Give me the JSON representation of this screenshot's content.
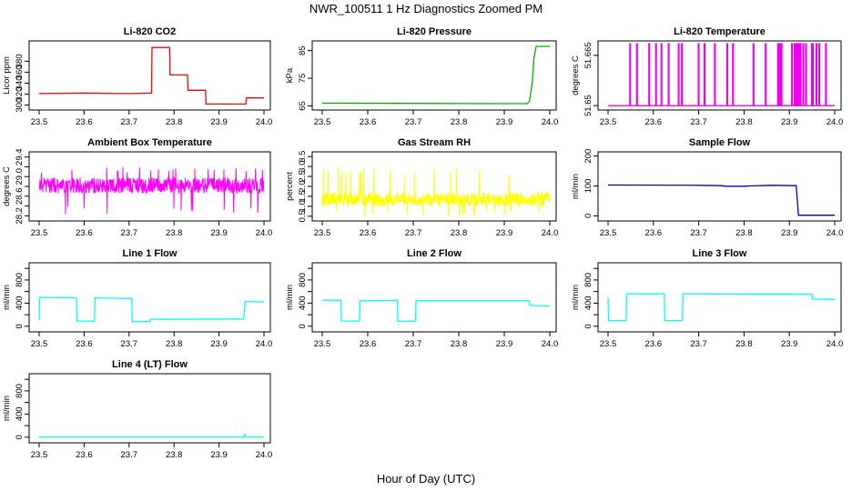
{
  "figure": {
    "title": "NWR_100511  1 Hz Diagnostics Zoomed PM",
    "xlabel": "Hour of Day (UTC)"
  },
  "chart_data": [
    {
      "type": "line",
      "title": "Li-820 CO2",
      "ylabel": "Licor ppm",
      "color": "#ff0000",
      "xlim": [
        23.5,
        24.0
      ],
      "ylim": [
        296,
        412
      ],
      "x_ticks": [
        23.5,
        23.6,
        23.7,
        23.8,
        23.9,
        24.0
      ],
      "y_ticks": [
        300,
        320,
        340,
        360,
        380
      ],
      "series": [
        {
          "x": [
            23.5,
            23.6,
            23.7,
            23.75,
            23.751,
            23.79,
            23.791,
            23.83,
            23.831,
            23.87,
            23.871,
            23.96,
            23.961,
            24.0
          ],
          "y": [
            321,
            322,
            321,
            322,
            405,
            405,
            355,
            355,
            327,
            327,
            302,
            302,
            313,
            313
          ]
        }
      ]
    },
    {
      "type": "line",
      "title": "Li-820 Pressure",
      "ylabel": "kPa",
      "color": "#00b000",
      "xlim": [
        23.5,
        24.0
      ],
      "ylim": [
        64.5,
        87.5
      ],
      "x_ticks": [
        23.5,
        23.6,
        23.7,
        23.8,
        23.9,
        24.0
      ],
      "y_ticks": [
        65,
        75,
        85
      ],
      "series": [
        {
          "x": [
            23.5,
            23.7,
            23.9,
            23.95,
            23.955,
            23.962,
            23.965,
            23.97,
            24.0
          ],
          "y": [
            66.0,
            65.9,
            65.8,
            65.8,
            66.5,
            74,
            82,
            86.5,
            86.5
          ]
        }
      ]
    },
    {
      "type": "line",
      "title": "Li-820 Temperature",
      "ylabel": "degrees C",
      "color": "#ee00ee",
      "xlim": [
        23.5,
        24.0
      ],
      "ylim": [
        51.6495,
        51.6685
      ],
      "x_ticks": [
        23.5,
        23.6,
        23.7,
        23.8,
        23.9,
        24.0
      ],
      "y_ticks": [
        51.65,
        51.665
      ],
      "series": [
        {
          "baseline": 51.65,
          "spike_top": 51.6685,
          "spike_x": [
            23.548,
            23.563,
            23.59,
            23.605,
            23.617,
            23.633,
            23.655,
            23.662,
            23.699,
            23.712,
            23.735,
            23.762,
            23.775,
            23.82,
            23.847,
            23.874,
            23.876,
            23.879,
            23.882,
            23.905,
            23.911,
            23.914,
            23.917,
            23.92,
            23.924,
            23.93,
            23.936,
            23.949,
            23.951,
            23.959,
            23.965,
            23.98
          ]
        }
      ]
    },
    {
      "type": "line",
      "title": "Ambient Box Temperature",
      "ylabel": "degrees C",
      "color": "#ff00ff",
      "xlim": [
        23.5,
        24.0
      ],
      "ylim": [
        28.15,
        29.45
      ],
      "x_ticks": [
        23.5,
        23.6,
        23.7,
        23.8,
        23.9,
        24.0
      ],
      "y_ticks": [
        28.2,
        28.4,
        28.6,
        28.8,
        29.0,
        29.2,
        29.4
      ],
      "y_tick_labels": [
        "28.2",
        "",
        "28.6",
        "",
        "29.0",
        "",
        "29.4"
      ],
      "series": [
        {
          "center": 28.82,
          "spread": 0.16,
          "outlier_low": 28.2,
          "outlier_high": 29.2
        }
      ]
    },
    {
      "type": "line",
      "title": "Gas Stream RH",
      "ylabel": "percent",
      "color": "#ffff00",
      "xlim": [
        23.5,
        24.0
      ],
      "ylim": [
        0.4,
        3.6
      ],
      "x_ticks": [
        23.5,
        23.6,
        23.7,
        23.8,
        23.9,
        24.0
      ],
      "y_ticks": [
        0.5,
        1.0,
        1.5,
        2.0,
        2.5,
        3.0,
        3.5
      ],
      "y_tick_labels": [
        "0.5",
        "1.0",
        "1.5",
        "2.0",
        "2.5",
        "3.0",
        "3.5"
      ],
      "series": [
        {
          "center": 1.35,
          "spread": 0.35,
          "outlier_low": 0.5,
          "outlier_high": 3.0
        }
      ]
    },
    {
      "type": "line",
      "title": "Sample Flow",
      "ylabel": "ml/min",
      "color": "#0000cc",
      "xlim": [
        23.5,
        24.0
      ],
      "ylim": [
        -8,
        205
      ],
      "x_ticks": [
        23.5,
        23.6,
        23.7,
        23.8,
        23.9,
        24.0
      ],
      "y_ticks": [
        0,
        100,
        200
      ],
      "series": [
        {
          "x": [
            23.5,
            23.7,
            23.75,
            23.76,
            23.8,
            23.81,
            23.86,
            23.915,
            23.92,
            24.0
          ],
          "y": [
            103,
            102,
            101,
            99,
            99,
            100,
            102,
            101,
            2,
            2
          ]
        }
      ]
    },
    {
      "type": "line",
      "title": "Line 1 Flow",
      "ylabel": "ml/min",
      "color": "#00ffff",
      "xlim": [
        23.5,
        24.0
      ],
      "ylim": [
        -50,
        1050
      ],
      "x_ticks": [
        23.5,
        23.6,
        23.7,
        23.8,
        23.9,
        24.0
      ],
      "y_ticks": [
        0,
        200,
        400,
        600,
        800,
        1000
      ],
      "y_tick_labels": [
        "0",
        "",
        "400",
        "",
        "800",
        ""
      ],
      "series": [
        {
          "x": [
            23.5,
            23.501,
            23.583,
            23.584,
            23.623,
            23.624,
            23.706,
            23.707,
            23.747,
            23.748,
            23.955,
            23.958,
            24.0
          ],
          "y": [
            100,
            500,
            490,
            90,
            90,
            490,
            480,
            80,
            80,
            120,
            125,
            430,
            420
          ]
        }
      ]
    },
    {
      "type": "line",
      "title": "Line 2 Flow",
      "ylabel": "ml/min",
      "color": "#00ffff",
      "xlim": [
        23.5,
        24.0
      ],
      "ylim": [
        -50,
        1050
      ],
      "x_ticks": [
        23.5,
        23.6,
        23.7,
        23.8,
        23.9,
        24.0
      ],
      "y_ticks": [
        0,
        200,
        400,
        600,
        800,
        1000
      ],
      "y_tick_labels": [
        "0",
        "",
        "400",
        "",
        "800",
        ""
      ],
      "series": [
        {
          "x": [
            23.5,
            23.541,
            23.542,
            23.582,
            23.583,
            23.665,
            23.666,
            23.705,
            23.706,
            23.955,
            23.956,
            24.0
          ],
          "y": [
            450,
            450,
            90,
            90,
            440,
            450,
            85,
            85,
            440,
            440,
            360,
            350
          ]
        }
      ]
    },
    {
      "type": "line",
      "title": "Line 3 Flow",
      "ylabel": "ml/min",
      "color": "#00ffff",
      "xlim": [
        23.5,
        24.0
      ],
      "ylim": [
        -50,
        1050
      ],
      "x_ticks": [
        23.5,
        23.6,
        23.7,
        23.8,
        23.9,
        24.0
      ],
      "y_ticks": [
        0,
        200,
        400,
        600,
        800,
        1000
      ],
      "y_tick_labels": [
        "0",
        "",
        "400",
        "",
        "800",
        ""
      ],
      "series": [
        {
          "x": [
            23.5,
            23.501,
            23.503,
            23.54,
            23.541,
            23.624,
            23.625,
            23.664,
            23.665,
            23.95,
            23.951,
            24.0
          ],
          "y": [
            500,
            100,
            100,
            100,
            560,
            560,
            100,
            100,
            560,
            550,
            470,
            460
          ]
        }
      ]
    },
    {
      "type": "line",
      "title": "Line 4 (LT) Flow",
      "ylabel": "ml/min",
      "color": "#00ffff",
      "xlim": [
        23.5,
        24.0
      ],
      "ylim": [
        -50,
        1050
      ],
      "x_ticks": [
        23.5,
        23.6,
        23.7,
        23.8,
        23.9,
        24.0
      ],
      "y_ticks": [
        0,
        200,
        400,
        600,
        800,
        1000
      ],
      "y_tick_labels": [
        "0",
        "",
        "400",
        "",
        "800",
        ""
      ],
      "series": [
        {
          "x": [
            23.5,
            23.955,
            23.957,
            23.958,
            23.96,
            24.0
          ],
          "y": [
            5,
            5,
            60,
            10,
            5,
            5
          ]
        }
      ]
    }
  ]
}
